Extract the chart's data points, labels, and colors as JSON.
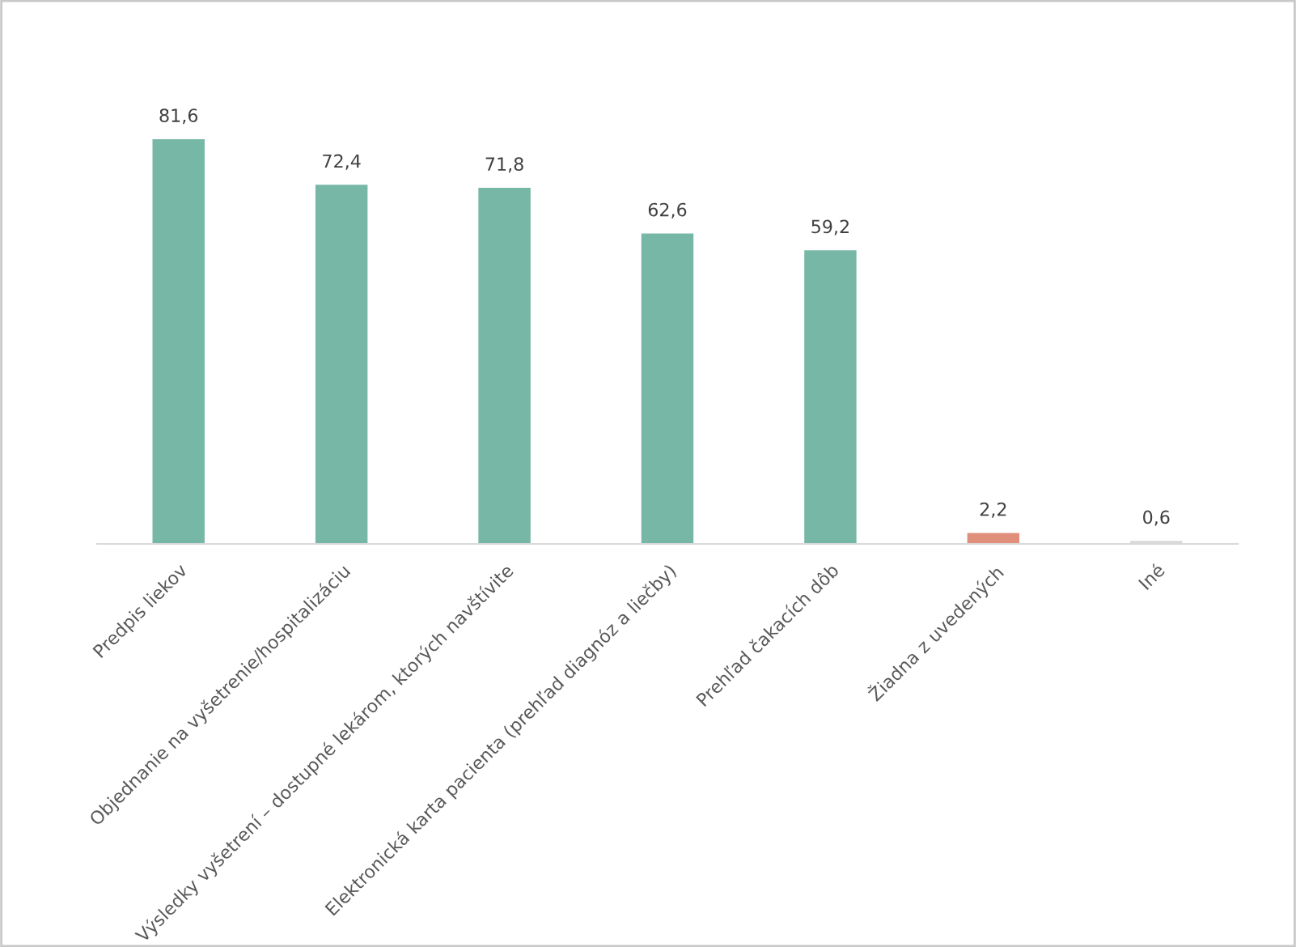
{
  "chart_data": {
    "type": "bar",
    "categories": [
      "Predpis liekov",
      "Objednanie na vyšetrenie/hospitalizáciu",
      "Výsledky vyšetrení – dostupné lekárom, ktorých navštívite",
      "Elektronická karta pacienta (prehľad diagnóz a liečby)",
      "Prehľad čakacích dôb",
      "Žiadna z uvedených",
      "Iné"
    ],
    "values": [
      81.6,
      72.4,
      71.8,
      62.6,
      59.2,
      2.2,
      0.6
    ],
    "value_labels": [
      "81,6",
      "72,4",
      "71,8",
      "62,6",
      "59,2",
      "2,2",
      "0,6"
    ],
    "colors": [
      "#76b7a5",
      "#76b7a5",
      "#76b7a5",
      "#76b7a5",
      "#76b7a5",
      "#e0907a",
      "#d9d9d9"
    ],
    "grid": false,
    "legend": false
  }
}
